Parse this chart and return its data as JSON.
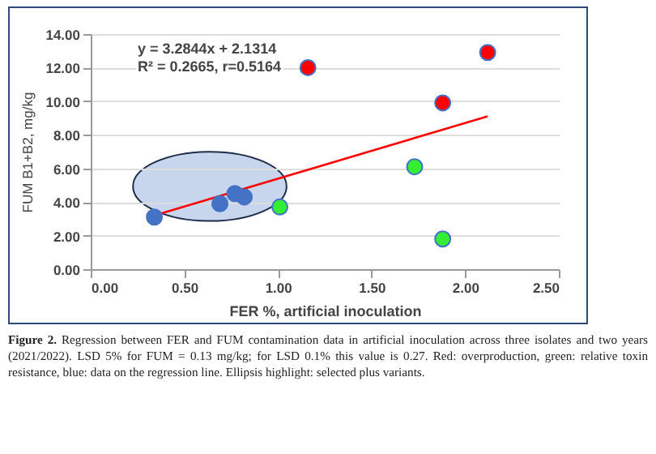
{
  "chart_data": {
    "type": "scatter",
    "xlabel": "FER %, artificial inoculation",
    "ylabel": "FUM B1+B2, mg/kg",
    "xlim": [
      0,
      2.5
    ],
    "xticks": [
      {
        "value": 0,
        "label": "0.00"
      },
      {
        "value": 0.5,
        "label": "0.50"
      },
      {
        "value": 1,
        "label": "1.00"
      },
      {
        "value": 1.5,
        "label": "1.50"
      },
      {
        "value": 2,
        "label": "2.00"
      },
      {
        "value": 2.5,
        "label": "2.50"
      }
    ],
    "ylim": [
      0,
      14
    ],
    "yticks": [
      {
        "value": 0,
        "label": "0.00"
      },
      {
        "value": 2,
        "label": "2.00"
      },
      {
        "value": 4,
        "label": "4.00"
      },
      {
        "value": 6,
        "label": "6.00"
      },
      {
        "value": 8,
        "label": "8.00"
      },
      {
        "value": 10,
        "label": "10.00"
      },
      {
        "value": 12,
        "label": "12.00"
      },
      {
        "value": 14,
        "label": "14.00"
      }
    ],
    "grid": "y",
    "marker": "circle",
    "series": [
      {
        "type": "line",
        "color": "#ff0000",
        "marker": "none",
        "x": [
          0.34,
          2.12
        ],
        "values": [
          3.2,
          9.1
        ]
      },
      {
        "color": "#4472c4",
        "x": [
          0.34,
          0.69,
          0.77,
          0.82
        ],
        "values": [
          3.1,
          3.9,
          4.5,
          4.3
        ]
      },
      {
        "color": "#33ee33",
        "x": [
          1.01,
          1.73,
          1.88
        ],
        "values": [
          3.7,
          6.1,
          1.8
        ]
      },
      {
        "color": "#ff0000",
        "x": [
          1.16,
          2.12,
          1.88
        ],
        "values": [
          12.0,
          12.9,
          9.9
        ]
      }
    ],
    "annotations": [
      "y = 3.2844x + 2.1314",
      "R² = 0.2665, r=0.5164",
      "Figure 2. Regression between FER and FUM contamination data in artificial inoculation across three isolates and two years (2021/2022).  LSD 5% for FUM = 0.13 mg/kg; for LSD 0.1% this value is 0.27. Red: overproduction, green: relative toxin resistance, blue: data on the regression line. Ellipsis highlight: selected plus variants."
    ]
  }
}
